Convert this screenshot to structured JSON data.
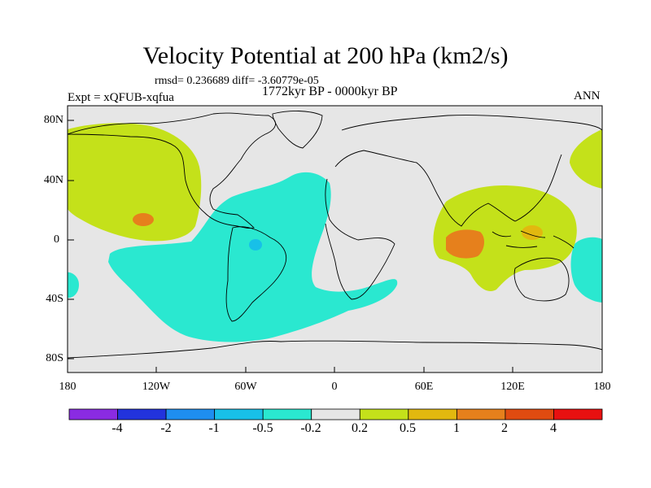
{
  "title": "Velocity Potential at 200 hPa (km2/s)",
  "stats": "rmsd= 0.236689 diff= -3.60779e-05",
  "period": "1772kyr BP - 0000kyr BP",
  "experiment": "Expt = xQFUB-xqfua",
  "season": "ANN",
  "lat_labels": [
    "80N",
    "40N",
    "0",
    "40S",
    "80S"
  ],
  "lon_labels": [
    "180",
    "120W",
    "60W",
    "0",
    "60E",
    "120E",
    "180"
  ],
  "colorbar": {
    "labels": [
      "-4",
      "-2",
      "-1",
      "-0.5",
      "-0.2",
      "0.2",
      "0.5",
      "1",
      "2",
      "4"
    ],
    "colors": [
      "#8a2be2",
      "#2233dd",
      "#1e8ef0",
      "#18c0e8",
      "#2ae8d0",
      "#e6e6e6",
      "#c4e11a",
      "#e2b80f",
      "#e6801c",
      "#e04b10",
      "#e81010"
    ]
  },
  "map_colors": {
    "background": "#e6e6e6",
    "neg_weak": "#2ae8d0",
    "neg_mid": "#18c0e8",
    "pos_weak": "#c4e11a",
    "pos_mid": "#e2b80f",
    "pos_strong": "#e6801c",
    "coast": "#000000"
  }
}
